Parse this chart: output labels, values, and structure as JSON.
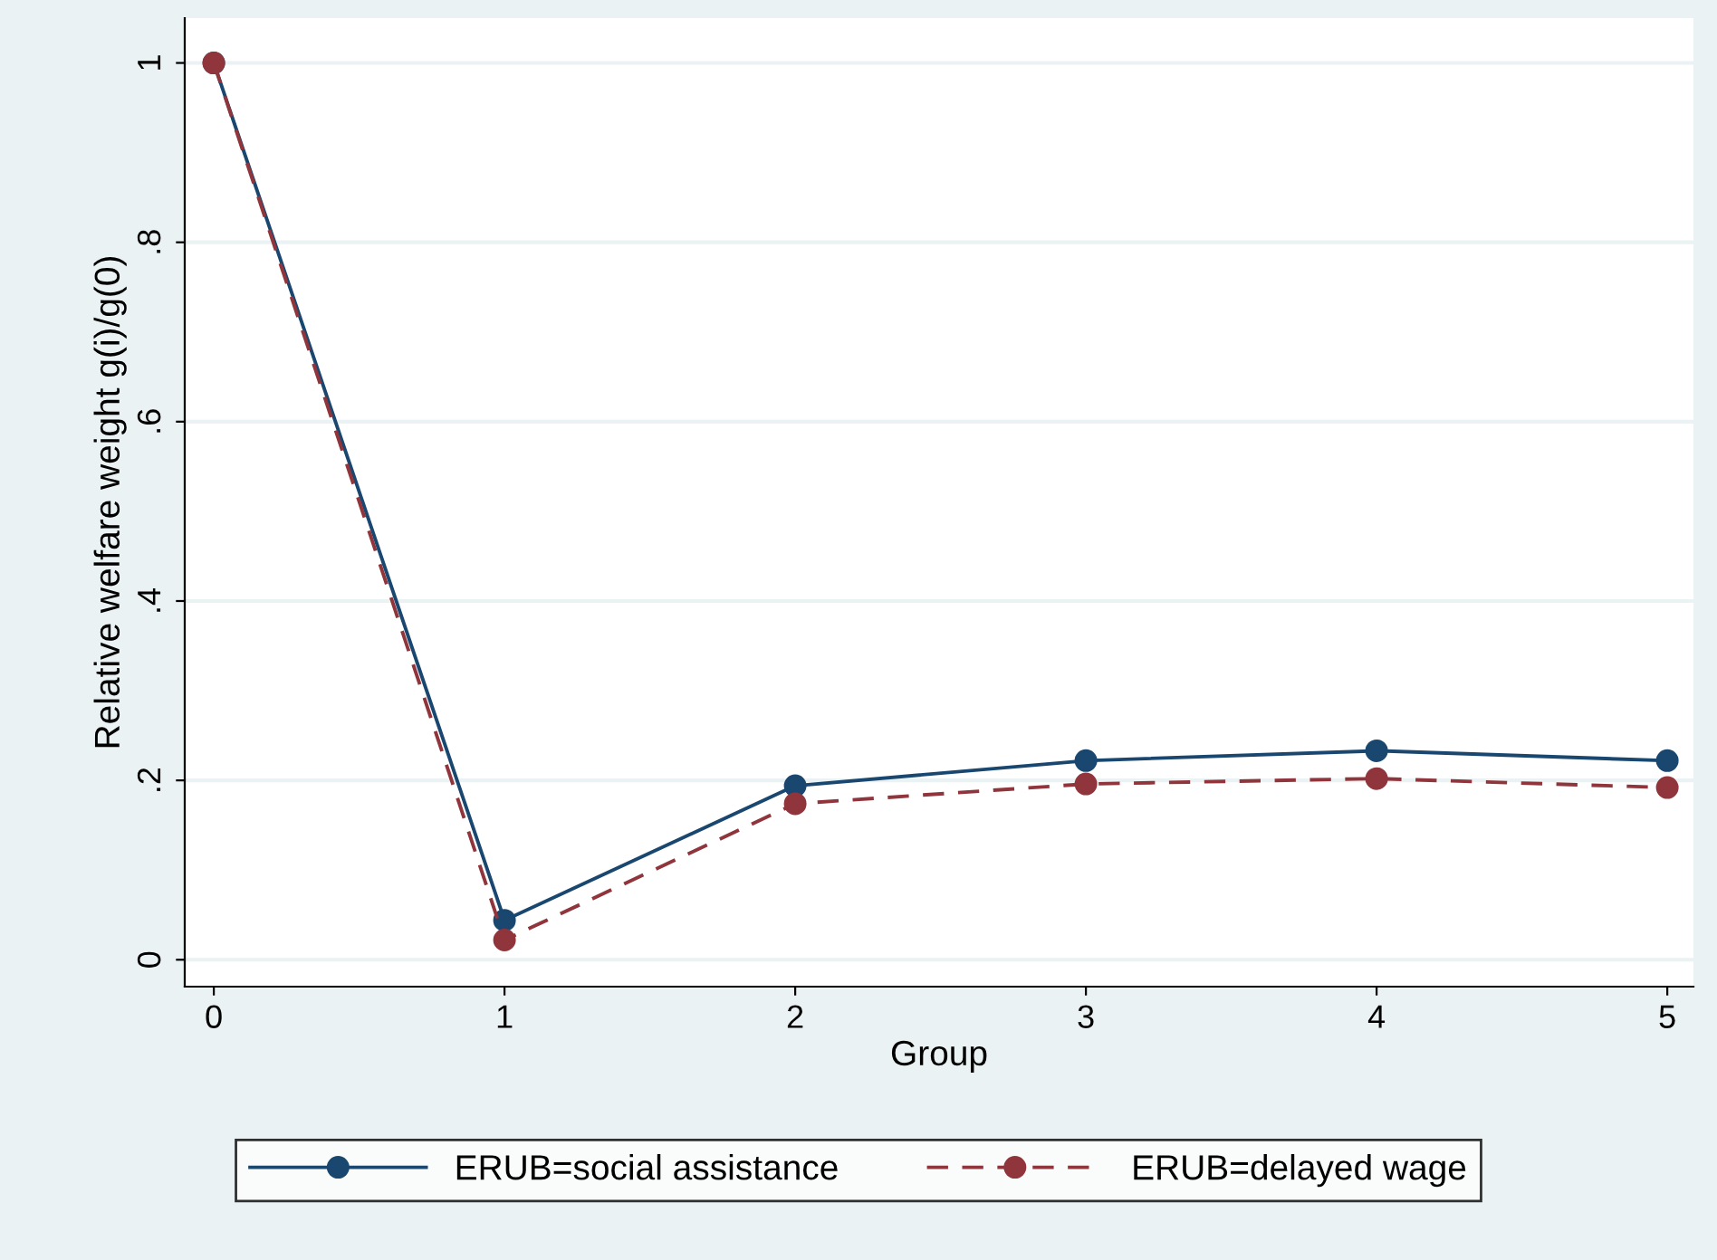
{
  "chart_data": {
    "type": "line",
    "xlabel": "Group",
    "ylabel": "Relative welfare weight g(i)/g(0)",
    "x": [
      0,
      1,
      2,
      3,
      4,
      5
    ],
    "series": [
      {
        "name": "ERUB=social assistance",
        "color": "#1a476f",
        "values": [
          1.0,
          0.044,
          0.194,
          0.222,
          0.233,
          0.222
        ],
        "line_style": "solid"
      },
      {
        "name": "ERUB=delayed wage",
        "color": "#90353b",
        "values": [
          1.0,
          0.022,
          0.174,
          0.196,
          0.202,
          0.192
        ],
        "line_style": "dashed"
      }
    ],
    "xlim": [
      -0.1,
      5.09
    ],
    "xticks": [
      0,
      1,
      2,
      3,
      4,
      5
    ],
    "ylim": [
      -0.03,
      1.05
    ],
    "yticks": [
      {
        "value": 0,
        "label": "0"
      },
      {
        "value": 0.2,
        "label": ".2"
      },
      {
        "value": 0.4,
        "label": ".4"
      },
      {
        "value": 0.6,
        "label": ".6"
      },
      {
        "value": 0.8,
        "label": ".8"
      },
      {
        "value": 1,
        "label": "1"
      }
    ],
    "grid": "y",
    "legend": "bottom",
    "marker": "circle"
  }
}
